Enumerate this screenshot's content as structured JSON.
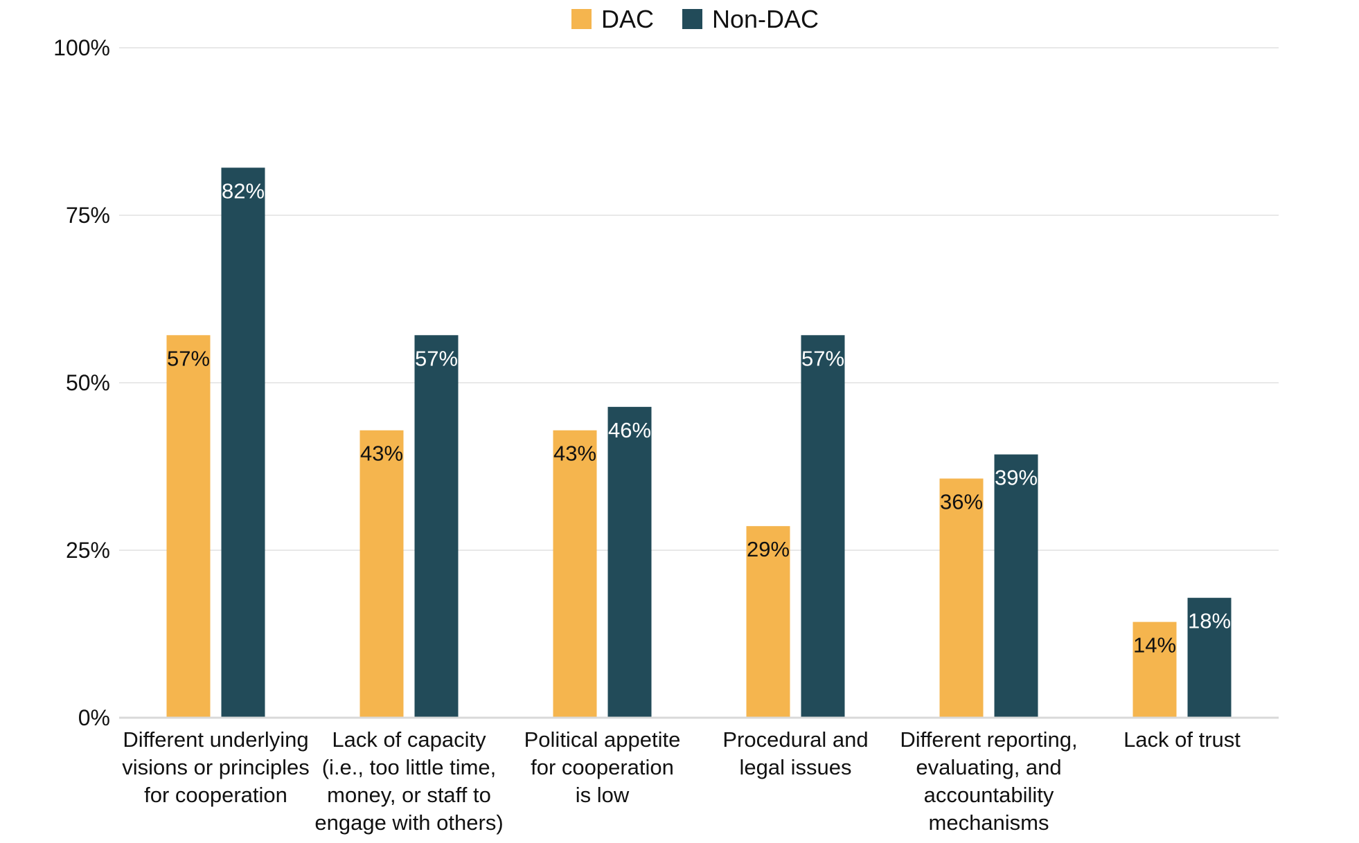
{
  "chart_data": {
    "type": "bar",
    "title": "",
    "xlabel": "",
    "ylabel": "",
    "ylim": [
      0,
      100
    ],
    "yticks": [
      0,
      25,
      50,
      75,
      100
    ],
    "ytick_labels": [
      "0%",
      "25%",
      "50%",
      "75%",
      "100%"
    ],
    "grid": true,
    "legend_position": "top-center",
    "categories": [
      [
        "Different underlying",
        "visions or principles",
        "for cooperation"
      ],
      [
        "Lack of capacity",
        "(i.e., too little time,",
        "money, or staff to",
        "engage with others)"
      ],
      [
        "Political appetite",
        "for cooperation",
        "is low"
      ],
      [
        "Procedural and",
        "legal issues"
      ],
      [
        "Different reporting,",
        "evaluating, and",
        "accountability",
        "mechanisms"
      ],
      [
        "Lack of trust"
      ]
    ],
    "series": [
      {
        "name": "DAC",
        "color": "#F5B54E",
        "label_color": "#111111",
        "values": [
          57.1,
          42.9,
          42.9,
          28.6,
          35.7,
          14.3
        ],
        "labels": [
          "57%",
          "43%",
          "43%",
          "29%",
          "36%",
          "14%"
        ]
      },
      {
        "name": "Non-DAC",
        "color": "#224B59",
        "label_color": "#ffffff",
        "values": [
          82.1,
          57.1,
          46.4,
          57.1,
          39.3,
          17.9
        ],
        "labels": [
          "82%",
          "57%",
          "46%",
          "57%",
          "39%",
          "18%"
        ]
      }
    ],
    "gridline_color": "#E8E8E8",
    "axis_color": "#D9D9D9"
  }
}
